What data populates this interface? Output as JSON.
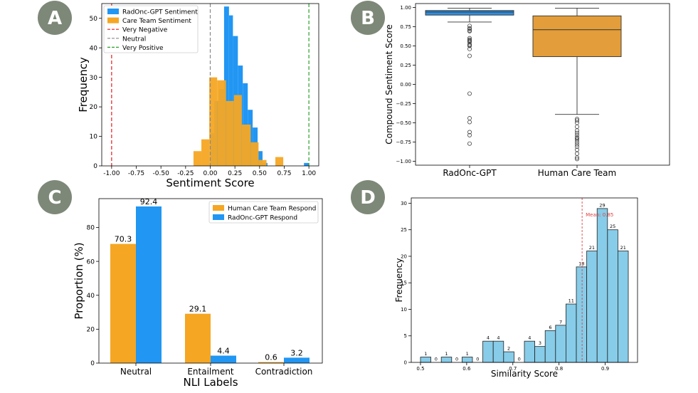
{
  "colors": {
    "radonc": "#2196f3",
    "care": "#f5a623",
    "boxblue": "#2e8ee0",
    "boxorange": "#e39d3a",
    "badge": "#7d8878",
    "hist_d": "#87cce8",
    "mean_line": "#e04040",
    "very_negative": "#e41a1c",
    "neutral_line": "#888888",
    "very_positive": "#2ca02c"
  },
  "chart_data": [
    {
      "id": "A",
      "type": "bar",
      "badge": "A",
      "xlabel": "Sentiment Score",
      "ylabel": "Frequency",
      "xlim": [
        -1.1,
        1.1
      ],
      "ylim": [
        0,
        55
      ],
      "xticks": [
        "-1.00",
        "-0.75",
        "-0.50",
        "-0.25",
        "0.00",
        "0.25",
        "0.50",
        "0.75",
        "1.00"
      ],
      "xtick_values": [
        -1.0,
        -0.75,
        -0.5,
        -0.25,
        0.0,
        0.25,
        0.5,
        0.75,
        1.0
      ],
      "yticks": [
        "0",
        "10",
        "20",
        "30",
        "40",
        "50"
      ],
      "ytick_values": [
        0,
        10,
        20,
        30,
        40,
        50
      ],
      "legend": [
        "RadOnc-GPT Sentiment",
        "Care Team Sentiment",
        "Very Negative",
        "Neutral",
        "Very Positive"
      ],
      "vlines": [
        -1.0,
        0.0,
        1.0
      ],
      "series": [
        {
          "name": "RadOnc-GPT Sentiment",
          "bins": [
            [
              -0.05,
              0.0
            ],
            [
              0.0,
              0.04
            ],
            [
              0.04,
              0.09
            ],
            [
              0.09,
              0.14
            ],
            [
              0.14,
              0.19
            ],
            [
              0.19,
              0.23
            ],
            [
              0.23,
              0.28
            ],
            [
              0.28,
              0.33
            ],
            [
              0.33,
              0.38
            ],
            [
              0.38,
              0.43
            ],
            [
              0.43,
              0.48
            ],
            [
              0.48,
              0.53
            ],
            [
              0.53,
              0.58
            ],
            [
              0.95,
              1.0
            ]
          ],
          "values": [
            0,
            11,
            22,
            26,
            54,
            51,
            44,
            34,
            28,
            19,
            13,
            5,
            1,
            1
          ]
        },
        {
          "name": "Care Team Sentiment",
          "bins": [
            [
              -0.17,
              -0.09
            ],
            [
              -0.09,
              -0.01
            ],
            [
              -0.01,
              0.07
            ],
            [
              0.07,
              0.16
            ],
            [
              0.16,
              0.24
            ],
            [
              0.24,
              0.32
            ],
            [
              0.32,
              0.41
            ],
            [
              0.41,
              0.49
            ],
            [
              0.49,
              0.57
            ],
            [
              0.57,
              0.66
            ],
            [
              0.66,
              0.74
            ],
            [
              0.74,
              0.82
            ]
          ],
          "values": [
            5,
            9,
            30,
            29,
            22,
            24,
            14,
            8,
            2,
            0,
            3,
            0
          ]
        }
      ]
    },
    {
      "id": "B",
      "type": "box",
      "badge": "B",
      "ylabel": "Compound Sentiment Score",
      "ylim": [
        -1.05,
        1.05
      ],
      "yticks": [
        "1.00",
        "0.75",
        "0.50",
        "0.25",
        "0.00",
        "−0.25",
        "−0.50",
        "−0.75",
        "−1.00"
      ],
      "ytick_values": [
        1.0,
        0.75,
        0.5,
        0.25,
        0.0,
        -0.25,
        -0.5,
        -0.75,
        -1.0
      ],
      "categories": [
        "RadOnc-GPT",
        "Human Care Team"
      ],
      "boxes": [
        {
          "name": "RadOnc-GPT",
          "whisker_low": 0.81,
          "q1": 0.9,
          "median": 0.94,
          "q3": 0.96,
          "whisker_high": 0.99,
          "outliers": [
            0.76,
            0.73,
            0.72,
            0.7,
            0.69,
            0.6,
            0.58,
            0.57,
            0.56,
            0.55,
            0.52,
            0.51,
            0.5,
            0.46,
            0.37,
            -0.12,
            -0.44,
            -0.49,
            -0.62,
            -0.66,
            -0.77
          ]
        },
        {
          "name": "Human Care Team",
          "whisker_low": -0.39,
          "q1": 0.36,
          "median": 0.71,
          "q3": 0.89,
          "whisker_high": 0.99,
          "outliers": [
            -0.45,
            -0.47,
            -0.5,
            -0.55,
            -0.6,
            -0.63,
            -0.66,
            -0.69,
            -0.7,
            -0.72,
            -0.75,
            -0.78,
            -0.81,
            -0.85,
            -0.9,
            -0.95,
            -0.97
          ]
        }
      ]
    },
    {
      "id": "C",
      "type": "bar",
      "badge": "C",
      "xlabel": "NLI Labels",
      "ylabel": "Proportion (%)",
      "ylim": [
        0,
        97
      ],
      "yticks": [
        "0",
        "20",
        "40",
        "60",
        "80"
      ],
      "ytick_values": [
        0,
        20,
        40,
        60,
        80
      ],
      "categories": [
        "Neutral",
        "Entailment",
        "Contradiction"
      ],
      "series": [
        {
          "name": "Human Care Team Respond",
          "values": [
            70.3,
            29.1,
            0.6
          ],
          "labels": [
            "70.3",
            "29.1",
            "0.6"
          ]
        },
        {
          "name": "RadOnc-GPT Respond",
          "values": [
            92.4,
            4.4,
            3.2
          ],
          "labels": [
            "92.4",
            "4.4",
            "3.2"
          ]
        }
      ]
    },
    {
      "id": "D",
      "type": "bar",
      "badge": "D",
      "xlabel": "Similarity Score",
      "ylabel": "Frequency",
      "xlim": [
        0.48,
        0.97
      ],
      "ylim": [
        0,
        31
      ],
      "xticks": [
        "0.5",
        "0.6",
        "0.7",
        "0.8",
        "0.9"
      ],
      "xtick_values": [
        0.5,
        0.6,
        0.7,
        0.8,
        0.9
      ],
      "yticks": [
        "0",
        "5",
        "10",
        "15",
        "20",
        "25",
        "30"
      ],
      "ytick_values": [
        0,
        5,
        10,
        15,
        20,
        25,
        30
      ],
      "bin_start": 0.5,
      "bin_width": 0.0225,
      "values": [
        1,
        0,
        1,
        0,
        1,
        0,
        4,
        4,
        2,
        0,
        4,
        3,
        6,
        7,
        11,
        18,
        21,
        29,
        25,
        21
      ],
      "labels": [
        "1",
        "0",
        "1",
        "0",
        "1",
        "0",
        "4",
        "4",
        "2",
        "0",
        "4",
        "3",
        "6",
        "7",
        "11",
        "18",
        "21",
        "29",
        "25",
        "21"
      ],
      "mean": 0.85,
      "mean_label": "Mean: 0.85"
    }
  ]
}
